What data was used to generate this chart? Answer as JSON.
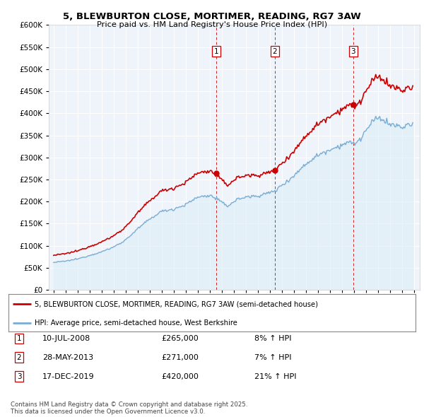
{
  "title": "5, BLEWBURTON CLOSE, MORTIMER, READING, RG7 3AW",
  "subtitle": "Price paid vs. HM Land Registry's House Price Index (HPI)",
  "legend_line1": "5, BLEWBURTON CLOSE, MORTIMER, READING, RG7 3AW (semi-detached house)",
  "legend_line2": "HPI: Average price, semi-detached house, West Berkshire",
  "sale_color": "#cc0000",
  "hpi_color": "#7aadd4",
  "hpi_fill_color": "#ddeef8",
  "vline_color": "#cc0000",
  "ylim": [
    0,
    600000
  ],
  "yticks": [
    0,
    50000,
    100000,
    150000,
    200000,
    250000,
    300000,
    350000,
    400000,
    450000,
    500000,
    550000,
    600000
  ],
  "transactions": [
    {
      "num": 1,
      "date_yr": 2008.54,
      "price": 265000
    },
    {
      "num": 2,
      "date_yr": 2013.41,
      "price": 271000
    },
    {
      "num": 3,
      "date_yr": 2019.96,
      "price": 420000
    }
  ],
  "footer": "Contains HM Land Registry data © Crown copyright and database right 2025.\nThis data is licensed under the Open Government Licence v3.0.",
  "background_color": "#eef4fa",
  "hpi_anchors": {
    "1995.0": 62000,
    "1996.0": 65000,
    "1997.0": 70000,
    "1998.0": 78000,
    "1999.0": 86000,
    "2000.0": 97000,
    "2001.0": 113000,
    "2002.0": 138000,
    "2003.0": 160000,
    "2004.0": 178000,
    "2005.0": 183000,
    "2006.0": 193000,
    "2007.0": 210000,
    "2008.0": 214000,
    "2008.7": 205000,
    "2009.0": 197000,
    "2009.5": 190000,
    "2010.0": 200000,
    "2010.5": 207000,
    "2011.0": 210000,
    "2012.0": 213000,
    "2013.0": 220000,
    "2013.5": 225000,
    "2014.0": 237000,
    "2015.0": 258000,
    "2016.0": 285000,
    "2017.0": 305000,
    "2018.0": 318000,
    "2019.0": 328000,
    "2019.5": 335000,
    "2020.0": 330000,
    "2020.5": 340000,
    "2021.0": 360000,
    "2021.5": 378000,
    "2022.0": 390000,
    "2022.5": 385000,
    "2023.0": 375000,
    "2023.5": 372000,
    "2024.0": 368000,
    "2024.5": 373000,
    "2025.0": 375000
  }
}
